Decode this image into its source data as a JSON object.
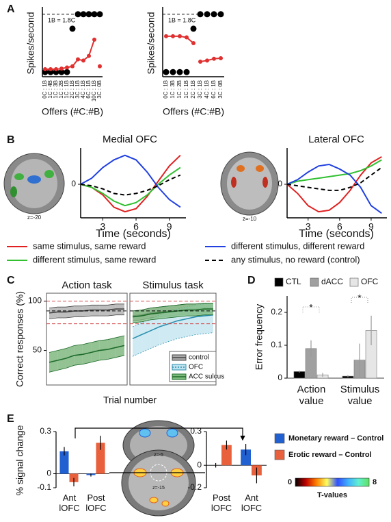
{
  "chart_data": [
    {
      "panel": "A",
      "type": "line",
      "ylabel": "Spikes/second",
      "xlabel": "Offers (#C:#B)",
      "annotation": "1B = 1.8C",
      "categories": [
        "0C : 1B",
        "1C : 4B",
        "1C : 3B",
        "1C : 2B",
        "1C : 1B",
        "2C : 1B",
        "3C : 1B",
        "4C : 1B",
        "6C : 1B",
        "10C : 1B",
        "3C : 0B"
      ],
      "ylim": [
        -8,
        108
      ],
      "ref_line": 100,
      "series": [
        {
          "color": "#000000",
          "line": false,
          "marker_size": 4.5,
          "values": [
            0,
            0,
            0,
            0,
            0,
            75,
            100,
            100,
            100,
            100,
            100
          ]
        },
        {
          "color": "#e03030",
          "line": true,
          "marker_size": 3,
          "values": [
            5,
            5,
            5,
            6,
            8,
            10,
            22,
            20,
            28,
            56,
            null
          ]
        },
        {
          "color": "#e03030",
          "line": true,
          "marker_size": 3,
          "values": [
            null,
            null,
            null,
            null,
            null,
            null,
            null,
            null,
            null,
            null,
            10
          ]
        }
      ]
    },
    {
      "type": "line",
      "ylabel": "Spikes/second",
      "xlabel": "Offers (#C:#B)",
      "annotation": "1B = 1.8C",
      "categories": [
        "0C : 1B",
        "1C : 3B",
        "1C : 2B",
        "1C : 1B",
        "2C : 1B",
        "3C : 1B",
        "4C : 1B",
        "6C : 1B",
        "3C : 0B"
      ],
      "ylim": [
        -8,
        108
      ],
      "ref_line": 100,
      "series": [
        {
          "color": "#000000",
          "line": false,
          "marker_size": 4.5,
          "values": [
            0,
            0,
            0,
            0,
            75,
            100,
            100,
            100,
            100
          ]
        },
        {
          "color": "#e03030",
          "line": true,
          "marker_size": 3,
          "values": [
            62,
            62,
            62,
            60,
            50,
            null,
            null,
            null,
            null
          ]
        },
        {
          "color": "#e03030",
          "line": true,
          "marker_size": 3,
          "values": [
            null,
            null,
            null,
            null,
            null,
            18,
            20,
            23,
            24
          ]
        }
      ]
    },
    {
      "panel": "B",
      "type": "line",
      "title": "Medial OFC",
      "image_label": "z=-20",
      "xlabel": "Time (seconds)",
      "x": [
        1,
        2,
        3,
        4,
        5,
        6,
        7,
        8,
        9,
        10
      ],
      "xlim": [
        1,
        10.5
      ],
      "xticks": [
        3,
        6,
        9
      ],
      "ylim": [
        -1.1,
        1.1
      ],
      "yticks": [
        0
      ],
      "series": [
        {
          "name": "same stimulus, same reward",
          "color": "#e02020",
          "values": [
            0,
            -0.1,
            -0.35,
            -0.75,
            -0.9,
            -0.8,
            -0.4,
            0.1,
            0.6,
            0.95
          ]
        },
        {
          "name": "different stimulus, same reward",
          "color": "#30c030",
          "values": [
            0,
            -0.1,
            -0.3,
            -0.55,
            -0.7,
            -0.6,
            -0.35,
            0,
            0.3,
            0.55
          ]
        },
        {
          "name": "different stimulus, different reward",
          "color": "#2040e0",
          "values": [
            0,
            0.2,
            0.55,
            0.8,
            0.95,
            0.8,
            0.4,
            -0.1,
            -0.5,
            -0.75
          ]
        },
        {
          "name": "any stimulus, no reward (control)",
          "color": "#000000",
          "dash": "6 4",
          "values": [
            0,
            -0.05,
            -0.15,
            -0.3,
            -0.35,
            -0.3,
            -0.2,
            -0.05,
            0.15,
            0.3
          ]
        }
      ]
    },
    {
      "type": "line",
      "title": "Lateral OFC",
      "image_label": "z=-10",
      "xlabel": "Time (seconds)",
      "x": [
        1,
        2,
        3,
        4,
        5,
        6,
        7,
        8,
        9,
        10
      ],
      "xlim": [
        1,
        10.5
      ],
      "xticks": [
        3,
        6,
        9
      ],
      "ylim": [
        -1.1,
        1.1
      ],
      "yticks": [
        0
      ],
      "series": [
        {
          "color": "#e02020",
          "values": [
            0,
            -0.3,
            -0.7,
            -0.9,
            -0.85,
            -0.6,
            -0.2,
            0.3,
            0.7,
            0.9
          ]
        },
        {
          "color": "#30c030",
          "values": [
            0,
            0.1,
            0.15,
            0.2,
            0.25,
            0.3,
            0.35,
            0.45,
            0.6,
            0.8
          ]
        },
        {
          "color": "#2040e0",
          "values": [
            0,
            0.15,
            0.4,
            0.6,
            0.65,
            0.5,
            0.3,
            -0.1,
            -0.7,
            -0.95
          ]
        },
        {
          "color": "#000000",
          "dash": "6 4",
          "values": [
            0,
            -0.05,
            -0.1,
            -0.15,
            -0.2,
            -0.2,
            -0.1,
            0.05,
            0.3,
            0.55
          ]
        }
      ]
    },
    {
      "panel": "C",
      "type": "band",
      "title": "Action task",
      "ylabel": "Correct responses (%)",
      "xlabel": "Trial number",
      "ylim": [
        15,
        108
      ],
      "yticks": [
        50,
        100
      ],
      "ref_lines": [
        {
          "value": 100,
          "color": "#d04040"
        },
        {
          "value": 90,
          "color": "#000000"
        },
        {
          "value": 77,
          "color": "#d04040"
        }
      ],
      "series": [
        {
          "color": "#444444",
          "fill": "#a8a8a8",
          "values": [
            88,
            89,
            89,
            90,
            90,
            91,
            91,
            91,
            92,
            92
          ],
          "lower": [
            82,
            83,
            83,
            84,
            84,
            85,
            85,
            85,
            86,
            86
          ],
          "upper": [
            93,
            94,
            94,
            95,
            95,
            96,
            96,
            96,
            97,
            97
          ]
        },
        {
          "color": "#1d6b2a",
          "fill": "#6fae6f",
          "values": [
            38,
            40,
            42,
            45,
            46,
            48,
            50,
            51,
            53,
            55
          ],
          "lower": [
            28,
            30,
            32,
            35,
            36,
            38,
            40,
            41,
            43,
            45
          ],
          "upper": [
            48,
            50,
            52,
            55,
            56,
            58,
            60,
            61,
            63,
            65
          ]
        }
      ]
    },
    {
      "type": "band",
      "title": "Stimulus task",
      "ylim": [
        15,
        108
      ],
      "ref_lines": [
        {
          "value": 100,
          "color": "#d04040"
        },
        {
          "value": 90,
          "color": "#000000"
        },
        {
          "value": 77,
          "color": "#d04040"
        }
      ],
      "series": [
        {
          "name": "control",
          "color": "#444444",
          "fill": "#a8a8a8",
          "values": [
            85,
            86,
            88,
            89,
            90,
            91,
            92,
            92,
            93,
            93
          ],
          "lower": [
            80,
            81,
            83,
            84,
            85,
            86,
            87,
            87,
            88,
            88
          ],
          "upper": [
            90,
            91,
            93,
            94,
            95,
            96,
            97,
            97,
            98,
            98
          ]
        },
        {
          "name": "OFC",
          "color": "#2a8fb0",
          "fill": "#bfe3ee",
          "dash": "2 2",
          "values": [
            62,
            66,
            70,
            74,
            77,
            80,
            82,
            84,
            85,
            86
          ],
          "lower": [
            44,
            48,
            52,
            56,
            59,
            62,
            64,
            66,
            67,
            68
          ],
          "upper": [
            74,
            78,
            82,
            86,
            89,
            92,
            94,
            96,
            97,
            98
          ]
        },
        {
          "name": "ACC sulcus",
          "color": "#1d6b2a",
          "fill": "#7dbb7d",
          "values": [
            84,
            85,
            87,
            88,
            89,
            90,
            91,
            91,
            92,
            92
          ],
          "lower": [
            78,
            79,
            81,
            82,
            83,
            84,
            85,
            85,
            86,
            86
          ],
          "upper": [
            90,
            91,
            93,
            94,
            95,
            96,
            97,
            97,
            98,
            98
          ]
        }
      ]
    },
    {
      "panel": "D",
      "type": "bar",
      "ylabel": "Error frequency",
      "categories": [
        "Action value",
        "Stimulus value"
      ],
      "ylim": [
        0,
        0.25
      ],
      "yticks": [
        0,
        0.1,
        0.2
      ],
      "annotations": [
        "*",
        "*"
      ],
      "series": [
        {
          "name": "CTL",
          "color": "#000000",
          "values": [
            0.02,
            0.006
          ],
          "errors": [
            0.003,
            0.003
          ]
        },
        {
          "name": "dACC",
          "color": "#a0a0a0",
          "values": [
            0.09,
            0.055
          ],
          "errors": [
            0.025,
            0.05
          ]
        },
        {
          "name": "OFC",
          "color": "#e6e6e6",
          "values": [
            0.01,
            0.145
          ],
          "errors": [
            0.006,
            0.045
          ]
        }
      ]
    },
    {
      "panel": "E",
      "type": "bar",
      "ylabel": "% signal change",
      "categories": [
        "Ant lOFC",
        "Post lOFC"
      ],
      "image_labels": [
        "z=-5",
        "z=-15"
      ],
      "ylim": [
        -0.1,
        0.3
      ],
      "yticks": [
        0.3,
        0,
        -0.1
      ],
      "series": [
        {
          "name": "Monetary reward – Control",
          "color": "#2060d0",
          "values": [
            0.16,
            -0.01
          ],
          "errors": [
            0.03,
            0.01
          ]
        },
        {
          "name": "Erotic reward – Control",
          "color": "#e8603c",
          "values": [
            -0.06,
            0.22
          ],
          "errors": [
            0.03,
            0.05
          ]
        }
      ]
    },
    {
      "type": "bar",
      "categories": [
        "Post lOFC",
        "Ant lOFC"
      ],
      "ylim": [
        -0.2,
        0.3
      ],
      "yticks": [
        0.3,
        0,
        -0.2
      ],
      "series": [
        {
          "color": "#2060d0",
          "values": [
            0,
            0.14
          ],
          "errors": [
            0.02,
            0.05
          ]
        },
        {
          "color": "#e8603c",
          "values": [
            0.18,
            -0.09
          ],
          "errors": [
            0.04,
            0.07
          ]
        }
      ]
    },
    {
      "type": "colorbar",
      "label": "T-values",
      "ticks": [
        0,
        8
      ],
      "colors": [
        "#000000",
        "#c00000",
        "#ff8000",
        "#ffff60",
        "#3050ff",
        "#40b0ff",
        "#60f0d0",
        "#60e060"
      ]
    }
  ]
}
